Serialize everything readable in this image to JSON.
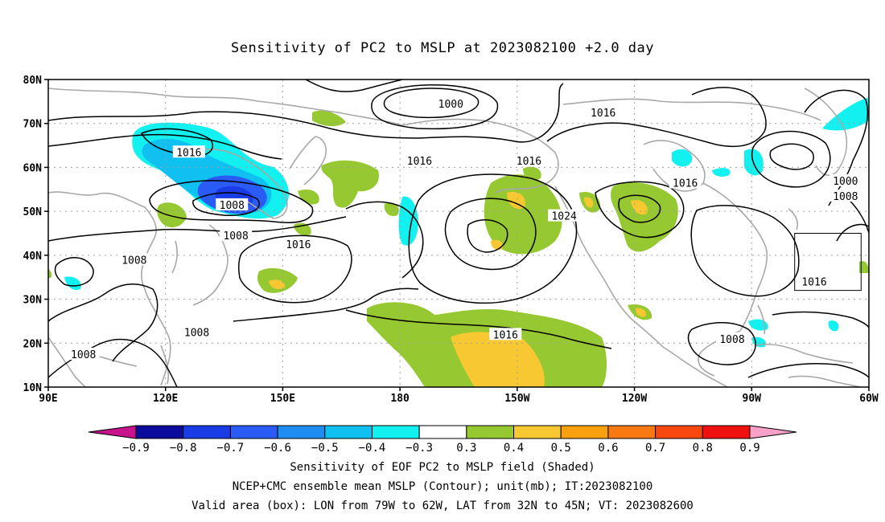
{
  "title": "Sensitivity of PC2 to MSLP at 2023082100 +2.0 day",
  "map": {
    "lon_range": [
      90,
      300
    ],
    "lat_range": [
      10,
      80
    ],
    "lat_ticks": [
      {
        "value": 80,
        "label": "80N"
      },
      {
        "value": 70,
        "label": "70N"
      },
      {
        "value": 60,
        "label": "60N"
      },
      {
        "value": 50,
        "label": "50N"
      },
      {
        "value": 40,
        "label": "40N"
      },
      {
        "value": 30,
        "label": "30N"
      },
      {
        "value": 20,
        "label": "20N"
      },
      {
        "value": 10,
        "label": "10N"
      }
    ],
    "lon_ticks": [
      {
        "value": 90,
        "label": "90E"
      },
      {
        "value": 120,
        "label": "120E"
      },
      {
        "value": 150,
        "label": "150E"
      },
      {
        "value": 180,
        "label": "180"
      },
      {
        "value": 210,
        "label": "150W"
      },
      {
        "value": 240,
        "label": "120W"
      },
      {
        "value": 270,
        "label": "90W"
      },
      {
        "value": 300,
        "label": "60W"
      }
    ],
    "grid": true,
    "valid_box": {
      "lon_min": 281,
      "lon_max": 298,
      "lat_min": 32,
      "lat_max": 45
    },
    "contour_labels": [
      {
        "text": "1000",
        "lon": 193,
        "lat": 74.5
      },
      {
        "text": "1016",
        "lon": 232,
        "lat": 72.5
      },
      {
        "text": "1016",
        "lon": 126,
        "lat": 63.5
      },
      {
        "text": "1016",
        "lon": 185,
        "lat": 61.5
      },
      {
        "text": "1016",
        "lon": 213,
        "lat": 61.5
      },
      {
        "text": "1008",
        "lon": 137,
        "lat": 51.5
      },
      {
        "text": "1008",
        "lon": 138,
        "lat": 44.5
      },
      {
        "text": "1016",
        "lon": 154,
        "lat": 42.5
      },
      {
        "text": "1008",
        "lon": 112,
        "lat": 39
      },
      {
        "text": "1024",
        "lon": 222,
        "lat": 49
      },
      {
        "text": "1016",
        "lon": 253,
        "lat": 56.5
      },
      {
        "text": "1000",
        "lon": 294,
        "lat": 57
      },
      {
        "text": "1008",
        "lon": 294,
        "lat": 53.5
      },
      {
        "text": "1016",
        "lon": 286,
        "lat": 34
      },
      {
        "text": "1016",
        "lon": 207,
        "lat": 22
      },
      {
        "text": "1008",
        "lon": 128,
        "lat": 22.5
      },
      {
        "text": "1008",
        "lon": 99,
        "lat": 17.5
      },
      {
        "text": "1008",
        "lon": 265,
        "lat": 21
      }
    ]
  },
  "colorbar": {
    "labels": [
      "-0.9",
      "-0.8",
      "-0.7",
      "-0.6",
      "-0.5",
      "-0.4",
      "-0.3",
      "0.3",
      "0.4",
      "0.5",
      "0.6",
      "0.7",
      "0.8",
      "0.9"
    ],
    "colors": [
      "#0c0c9c",
      "#1a3ce6",
      "#2a5cf5",
      "#1e8cf0",
      "#10c0f0",
      "#12f0f0",
      "#ffffff",
      "#96c832",
      "#f8c832",
      "#f8a010",
      "#f87812",
      "#f84810",
      "#f01010"
    ],
    "low_extend_color": "#c8148c",
    "high_extend_color": "#f8a0c8"
  },
  "captions": {
    "line1": "Sensitivity of EOF PC2 to MSLP field (Shaded)",
    "line2": "NCEP+CMC ensemble mean MSLP (Contour); unit(mb); IT:2023082100",
    "line3": "Valid area (box): LON from 79W to 62W, LAT from 32N to 45N; VT: 2023082600"
  },
  "colors": {
    "contour": "#000000",
    "coastline": "#a8a8a8",
    "grid": "#a0a0a0"
  }
}
